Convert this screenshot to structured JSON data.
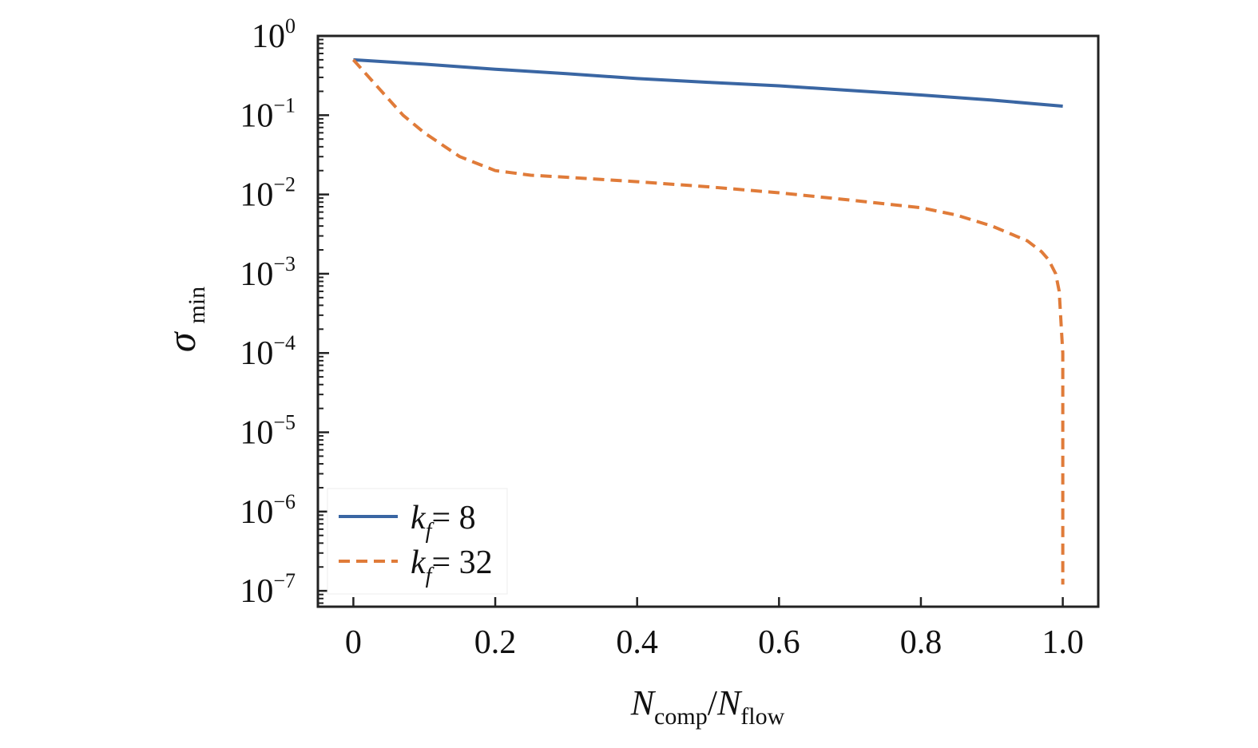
{
  "chart_data": {
    "type": "line",
    "log_y": true,
    "xlim": [
      -0.05,
      1.05
    ],
    "ylim_exp": [
      -7.2,
      0
    ],
    "x_ticks": [
      0,
      0.2,
      0.4,
      0.6,
      0.8,
      1.0
    ],
    "x_tick_labels": [
      "0",
      "0.2",
      "0.4",
      "0.6",
      "0.8",
      "1.0"
    ],
    "y_ticks": [
      {
        "base": "10",
        "exp": "0"
      },
      {
        "base": "10",
        "exp": "−1"
      },
      {
        "base": "10",
        "exp": "−2"
      },
      {
        "base": "10",
        "exp": "−3"
      },
      {
        "base": "10",
        "exp": "−4"
      },
      {
        "base": "10",
        "exp": "−5"
      },
      {
        "base": "10",
        "exp": "−6"
      },
      {
        "base": "10",
        "exp": "−7"
      }
    ],
    "xlabel": {
      "n1": "N",
      "sub1": "comp",
      "slash": "/",
      "n2": "N",
      "sub2": "flow"
    },
    "ylabel": {
      "sym": "σ",
      "sub": "min"
    },
    "legend_position": "bottom-left",
    "series": [
      {
        "legend_k": "k",
        "legend_sub": "f",
        "legend_value": "= 8",
        "color": "#3a66a3",
        "dash": "solid",
        "x": [
          0,
          0.1,
          0.2,
          0.3,
          0.4,
          0.5,
          0.6,
          0.7,
          0.8,
          0.9,
          1.0
        ],
        "y": [
          0.5,
          0.44,
          0.38,
          0.335,
          0.29,
          0.26,
          0.235,
          0.205,
          0.18,
          0.155,
          0.13
        ]
      },
      {
        "legend_k": "k",
        "legend_sub": "f",
        "legend_value": "= 32",
        "color": "#e07b39",
        "dash": "dashed",
        "x": [
          0,
          0.03,
          0.07,
          0.1,
          0.15,
          0.2,
          0.25,
          0.3,
          0.4,
          0.5,
          0.6,
          0.7,
          0.8,
          0.85,
          0.9,
          0.95,
          0.97,
          0.98,
          0.99,
          0.995,
          1.0,
          1.0
        ],
        "y": [
          0.5,
          0.25,
          0.1,
          0.06,
          0.03,
          0.02,
          0.0175,
          0.0165,
          0.0145,
          0.0125,
          0.0105,
          0.0085,
          0.0068,
          0.0055,
          0.004,
          0.0026,
          0.0019,
          0.0015,
          0.001,
          0.0006,
          0.0001,
          1.2e-07
        ]
      }
    ]
  }
}
